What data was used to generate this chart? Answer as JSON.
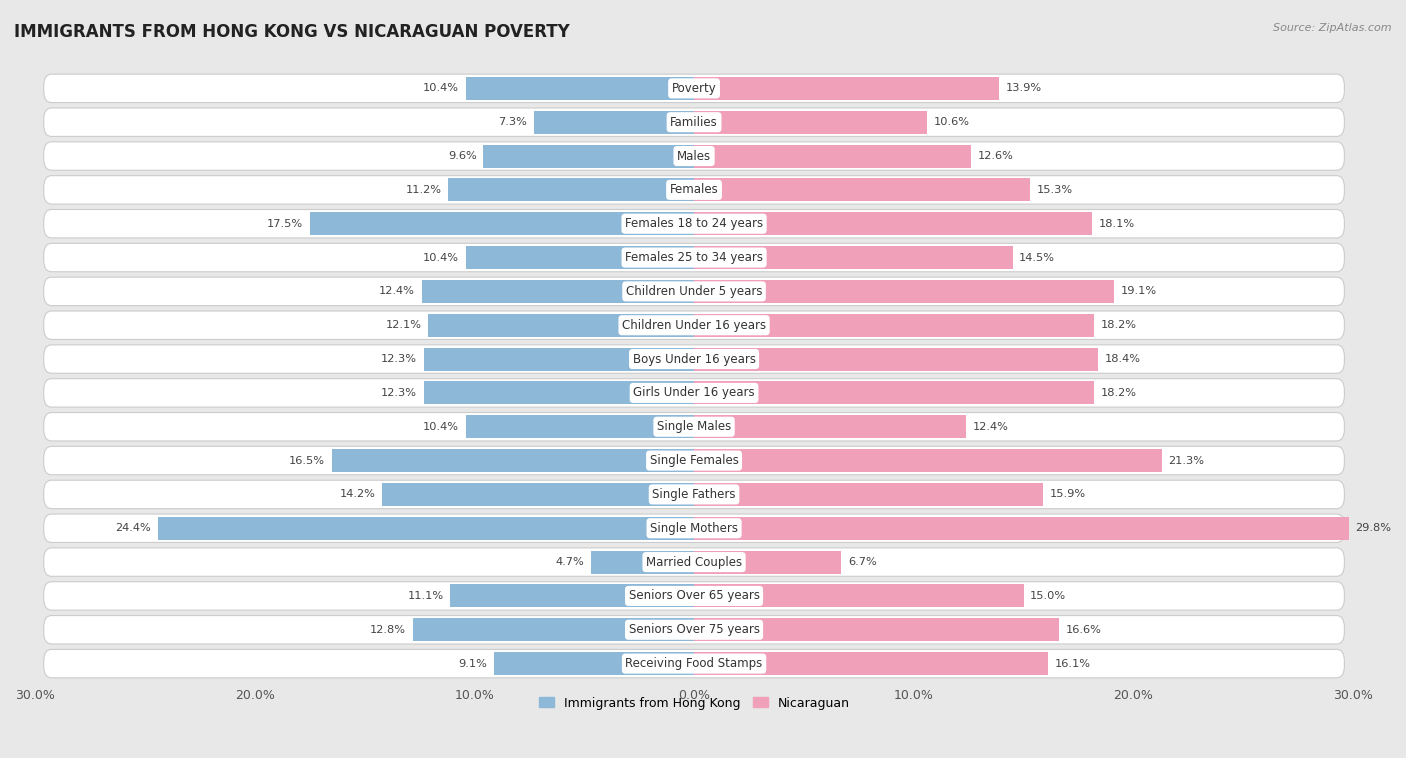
{
  "title": "IMMIGRANTS FROM HONG KONG VS NICARAGUAN POVERTY",
  "source": "Source: ZipAtlas.com",
  "categories": [
    "Poverty",
    "Families",
    "Males",
    "Females",
    "Females 18 to 24 years",
    "Females 25 to 34 years",
    "Children Under 5 years",
    "Children Under 16 years",
    "Boys Under 16 years",
    "Girls Under 16 years",
    "Single Males",
    "Single Females",
    "Single Fathers",
    "Single Mothers",
    "Married Couples",
    "Seniors Over 65 years",
    "Seniors Over 75 years",
    "Receiving Food Stamps"
  ],
  "hk_values": [
    10.4,
    7.3,
    9.6,
    11.2,
    17.5,
    10.4,
    12.4,
    12.1,
    12.3,
    12.3,
    10.4,
    16.5,
    14.2,
    24.4,
    4.7,
    11.1,
    12.8,
    9.1
  ],
  "nic_values": [
    13.9,
    10.6,
    12.6,
    15.3,
    18.1,
    14.5,
    19.1,
    18.2,
    18.4,
    18.2,
    12.4,
    21.3,
    15.9,
    29.8,
    6.7,
    15.0,
    16.6,
    16.1
  ],
  "hk_color": "#8db8d8",
  "nic_color": "#f0a0b8",
  "hk_label": "Immigrants from Hong Kong",
  "nic_label": "Nicaraguan",
  "xlim": 30.0,
  "bg_color": "#e8e8e8",
  "bar_bg_color": "#ffffff",
  "bar_height": 0.68,
  "title_fontsize": 12,
  "label_fontsize": 8.5,
  "value_fontsize": 8.2,
  "axis_label_fontsize": 9
}
